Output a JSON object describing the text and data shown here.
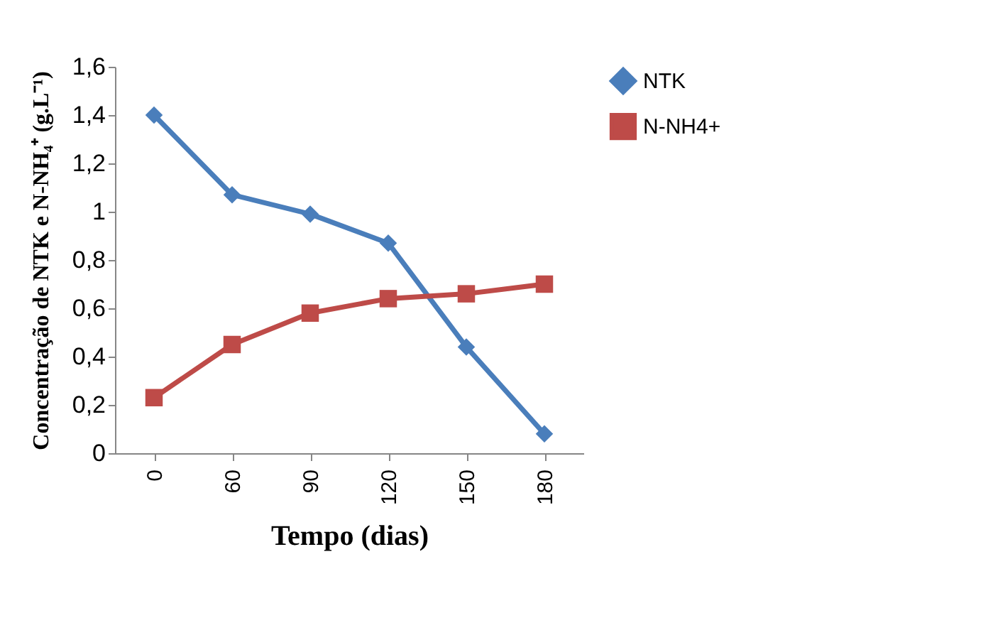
{
  "chart_data": {
    "type": "line",
    "xlabel": "Tempo (dias)",
    "ylabel": "Concentração de NTK e N-NH₄⁺ (g.L⁻¹)",
    "categories": [
      "0",
      "60",
      "90",
      "120",
      "150",
      "180"
    ],
    "series": [
      {
        "name": "NTK",
        "color": "#4a7ebb",
        "marker": "diamond",
        "values": [
          1.4,
          1.07,
          0.99,
          0.87,
          0.44,
          0.08
        ]
      },
      {
        "name": "N-NH4+",
        "color": "#be4b48",
        "marker": "square",
        "values": [
          0.23,
          0.45,
          0.58,
          0.64,
          0.66,
          0.7
        ]
      }
    ],
    "ylim": [
      0,
      1.6
    ],
    "yticks": [
      0,
      {
        "value": 0.2,
        "label": "0,2"
      },
      {
        "value": 0.4,
        "label": "0,4"
      },
      {
        "value": 0.6,
        "label": "0,6"
      },
      {
        "value": 0.8,
        "label": "0,8"
      },
      1,
      {
        "value": 1.2,
        "label": "1,2"
      },
      {
        "value": 1.4,
        "label": "1,4"
      },
      {
        "value": 1.6,
        "label": "1,6"
      }
    ],
    "grid": false,
    "legend": "right",
    "line_style": "solid"
  }
}
